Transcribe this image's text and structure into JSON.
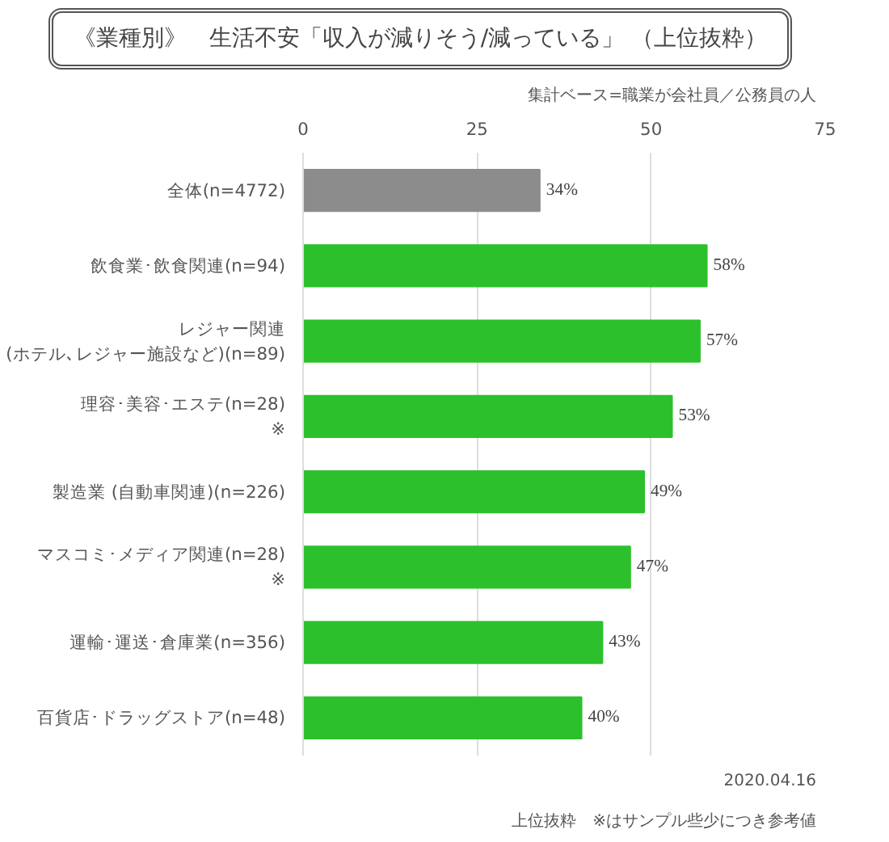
{
  "chart_data": {
    "type": "bar",
    "orientation": "horizontal",
    "title": "《業種別》　生活不安「収入が減りそう/減っている」 （上位抜粋）",
    "subtitle": "集計ベース=職業が会社員／公務員の人",
    "categories": [
      "全体(n=4772)",
      "飲食業･飲食関連(n=94)",
      "レジャー関連\n(ホテル､レジャー施設など)(n=89)",
      "理容･美容･エステ(n=28)\n※",
      "製造業 (自動車関連)(n=226)",
      "マスコミ･メディア関連(n=28)\n※",
      "運輸･運送･倉庫業(n=356)",
      "百貨店･ドラッグストア(n=48)"
    ],
    "values": [
      34,
      58,
      57,
      53,
      49,
      47,
      43,
      40
    ],
    "colors": [
      "#8c8c8c",
      "#2cc12c",
      "#2cc12c",
      "#2cc12c",
      "#2cc12c",
      "#2cc12c",
      "#2cc12c",
      "#2cc12c"
    ],
    "value_labels": [
      "34%",
      "58%",
      "57%",
      "53%",
      "49%",
      "47%",
      "43%",
      "40%"
    ],
    "xlim": [
      0,
      75
    ],
    "xticks": [
      0,
      25,
      50,
      75
    ],
    "grid": "x",
    "annotations": [
      "2020.04.16",
      "上位抜粋　※はサンプル些少につき参考値"
    ]
  }
}
